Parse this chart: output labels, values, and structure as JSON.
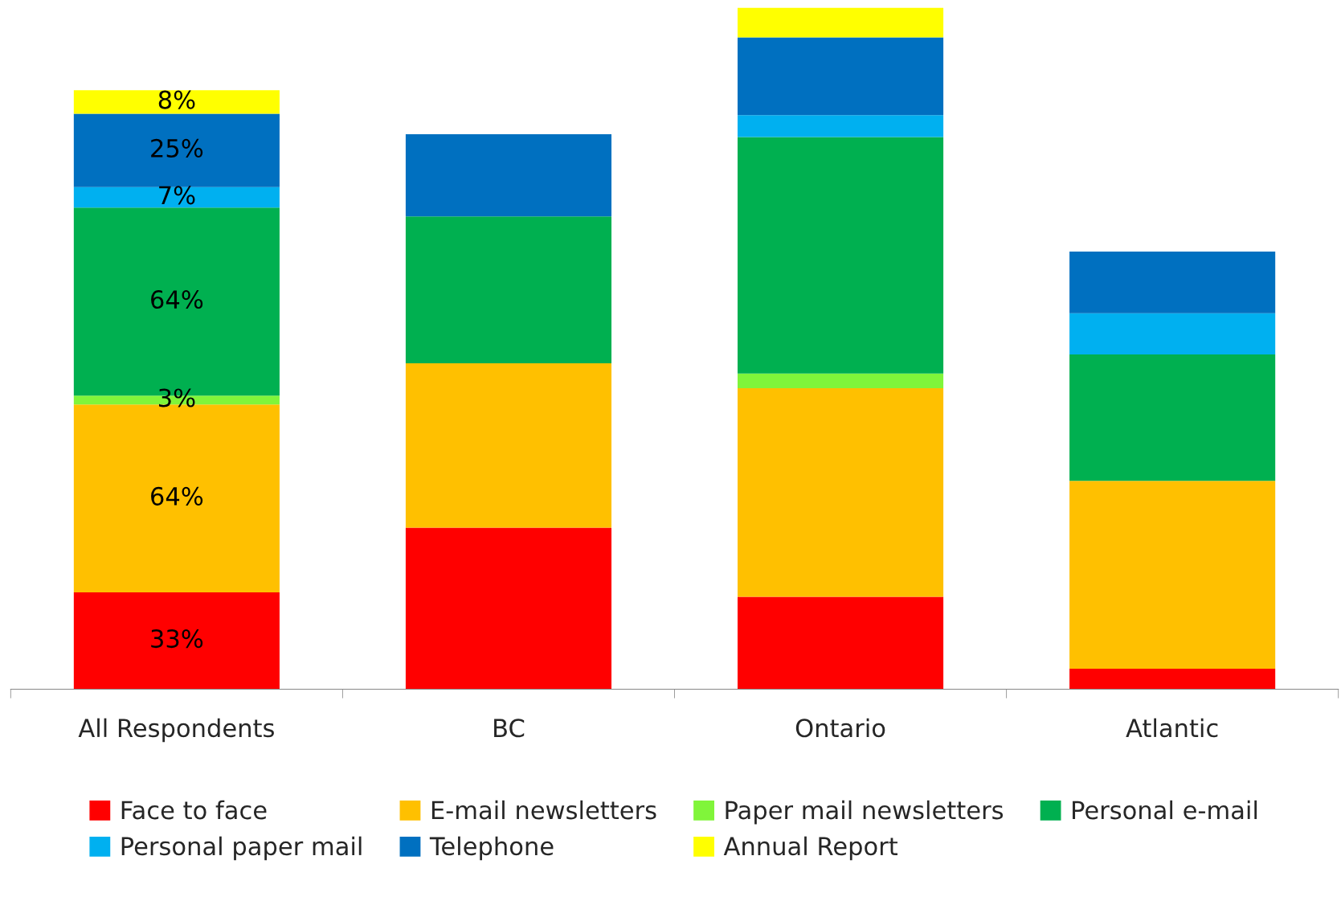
{
  "chart_data": {
    "type": "bar",
    "stacked": true,
    "legend": "bottom",
    "grid": false,
    "categories": [
      "All Respondents",
      "BC",
      "Ontario",
      "Atlantic"
    ],
    "series": [
      {
        "name": "Face to face",
        "color": "#ff0000",
        "values": [
          33,
          55,
          31.5,
          7
        ],
        "value_labels": [
          "33%",
          null,
          null,
          null
        ]
      },
      {
        "name": "E-mail newsletters",
        "color": "#ffc000",
        "values": [
          64,
          56,
          71,
          64
        ],
        "value_labels": [
          "64%",
          null,
          null,
          null
        ]
      },
      {
        "name": "Paper mail newsletters",
        "color": "#80f53a",
        "values": [
          3,
          null,
          5,
          null
        ],
        "value_labels": [
          "3%",
          null,
          null,
          null
        ]
      },
      {
        "name": "Personal e-mail",
        "color": "#00b050",
        "values": [
          64,
          50,
          80.5,
          43
        ],
        "value_labels": [
          "64%",
          null,
          null,
          null
        ]
      },
      {
        "name": "Personal paper mail",
        "color": "#00b0f0",
        "values": [
          7,
          null,
          7.5,
          14
        ],
        "value_labels": [
          "7%",
          null,
          null,
          null
        ]
      },
      {
        "name": "Telephone",
        "color": "#0070c0",
        "values": [
          25,
          28,
          26.5,
          21
        ],
        "value_labels": [
          "25%",
          null,
          null,
          null
        ]
      },
      {
        "name": "Annual Report",
        "color": "#ffff00",
        "values": [
          8,
          null,
          10,
          null
        ],
        "value_labels": [
          "8%",
          null,
          null,
          null
        ]
      }
    ]
  }
}
